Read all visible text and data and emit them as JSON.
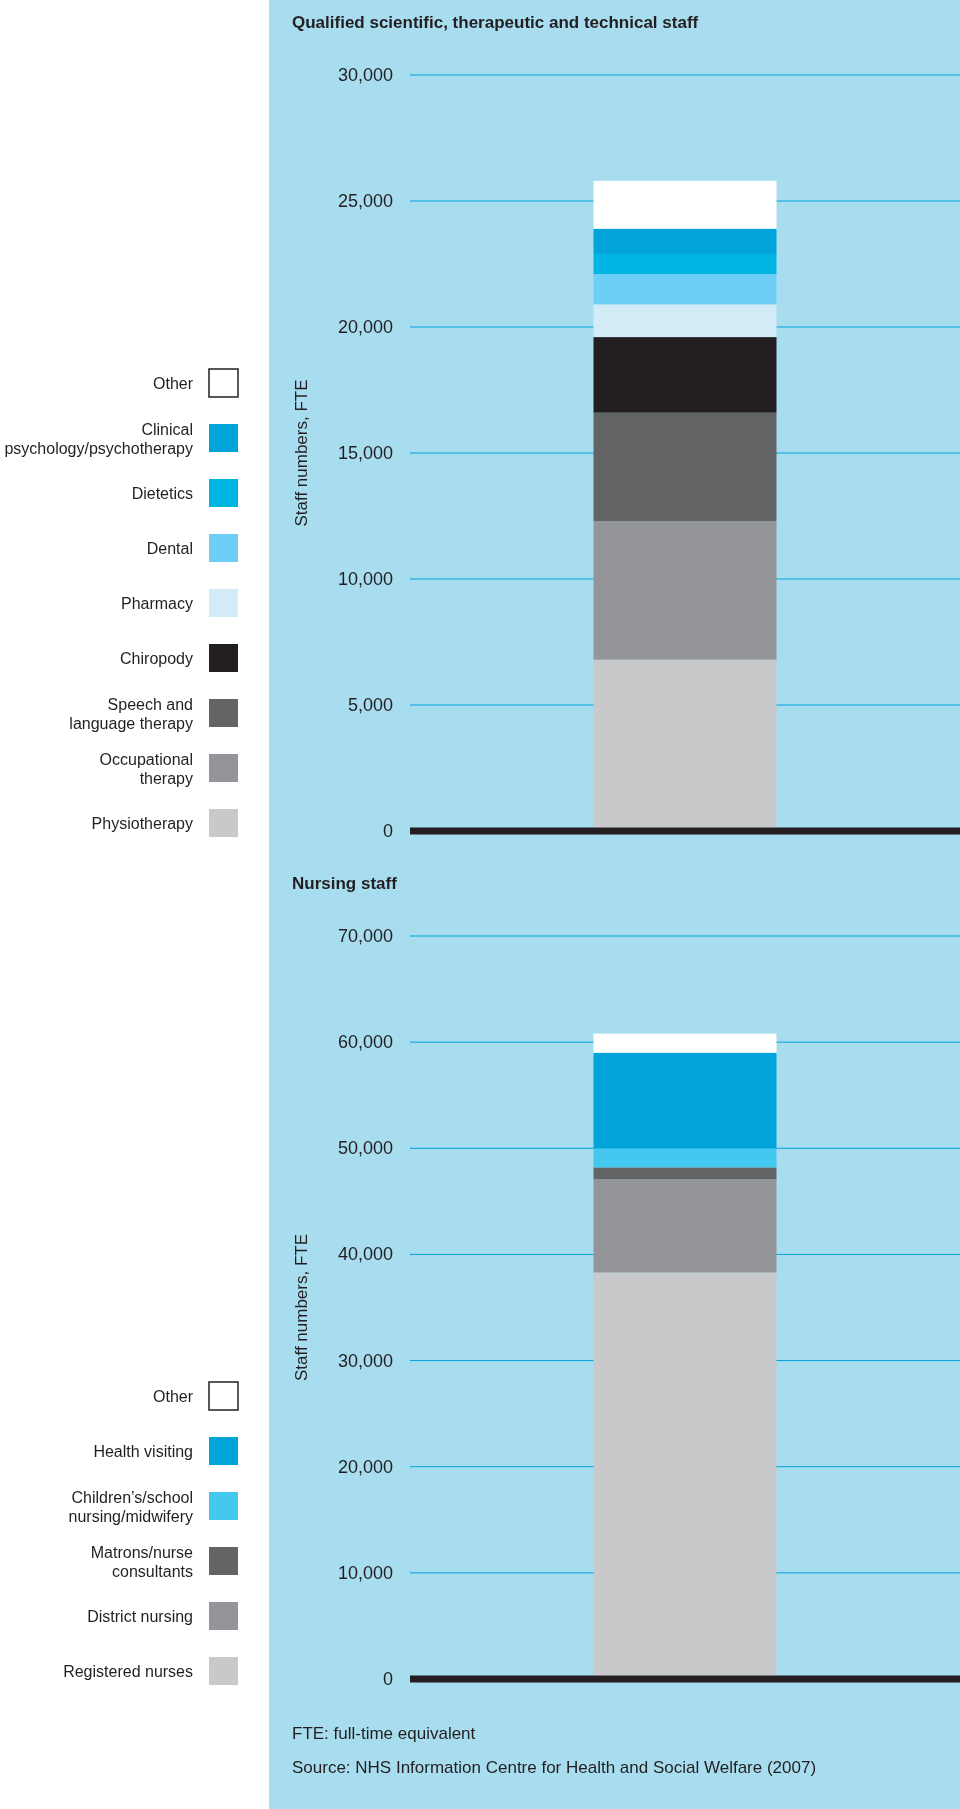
{
  "chart_data": [
    {
      "type": "bar",
      "title": "Qualified scientific, therapeutic and technical staff",
      "ylabel": "Staff numbers, FTE",
      "stacked": true,
      "categories": [
        null
      ],
      "legend": "left",
      "grid": "y",
      "ylim": [
        0,
        30000
      ],
      "yticks": [
        {
          "value": 0,
          "label": "0"
        },
        {
          "value": 5000,
          "label": "5,000"
        },
        {
          "value": 10000,
          "label": "10,000"
        },
        {
          "value": 15000,
          "label": "15,000"
        },
        {
          "value": 20000,
          "label": "20,000"
        },
        {
          "value": 25000,
          "label": "25,000"
        },
        {
          "value": 30000,
          "label": "30,000"
        }
      ],
      "series": [
        {
          "name": "Physiotherapy",
          "color": "#c8c9cb",
          "values": [
            6800
          ]
        },
        {
          "name": "Occupational therapy",
          "color": "#939598",
          "values": [
            5500
          ]
        },
        {
          "name": "Speech and language therapy",
          "color": "#636466",
          "values": [
            4300
          ]
        },
        {
          "name": "Chiropody",
          "color": "#231f20",
          "values": [
            3000
          ]
        },
        {
          "name": "Pharmacy",
          "color": "#d2ecf7",
          "values": [
            1300
          ]
        },
        {
          "name": "Dental",
          "color": "#6dcff6",
          "values": [
            1200
          ]
        },
        {
          "name": "Dietetics",
          "color": "#00b5e2",
          "values": [
            800
          ]
        },
        {
          "name": "Clinical psychology/psychotherapy",
          "color": "#00a3da",
          "values": [
            1000
          ]
        },
        {
          "name": "Other",
          "color": "#ffffff",
          "values": [
            1900
          ]
        }
      ]
    },
    {
      "type": "bar",
      "title": "Nursing staff",
      "ylabel": "Staff numbers, FTE",
      "stacked": true,
      "categories": [
        null
      ],
      "legend": "left",
      "grid": "y",
      "ylim": [
        0,
        70000
      ],
      "yticks": [
        {
          "value": 0,
          "label": "0"
        },
        {
          "value": 10000,
          "label": "10,000"
        },
        {
          "value": 20000,
          "label": "20,000"
        },
        {
          "value": 30000,
          "label": "30,000"
        },
        {
          "value": 40000,
          "label": "40,000"
        },
        {
          "value": 50000,
          "label": "50,000"
        },
        {
          "value": 60000,
          "label": "60,000"
        },
        {
          "value": 70000,
          "label": "70,000"
        }
      ],
      "annotations": [
        "FTE: full-time equivalent",
        "Source: NHS Information Centre for Health and Social Welfare (2007)"
      ],
      "series": [
        {
          "name": "Registered nurses",
          "color": "#c8c9cb",
          "values": [
            38300
          ]
        },
        {
          "name": "District nursing",
          "color": "#939598",
          "values": [
            8800
          ]
        },
        {
          "name": "Matrons/nurse consultants",
          "color": "#636466",
          "values": [
            1100
          ]
        },
        {
          "name": "Children’s/school nursing/midwifery",
          "color": "#44c8f0",
          "values": [
            1800
          ]
        },
        {
          "name": "Health visiting",
          "color": "#00a3da",
          "values": [
            9000
          ]
        },
        {
          "name": "Other",
          "color": "#ffffff",
          "values": [
            1800
          ]
        }
      ]
    }
  ]
}
